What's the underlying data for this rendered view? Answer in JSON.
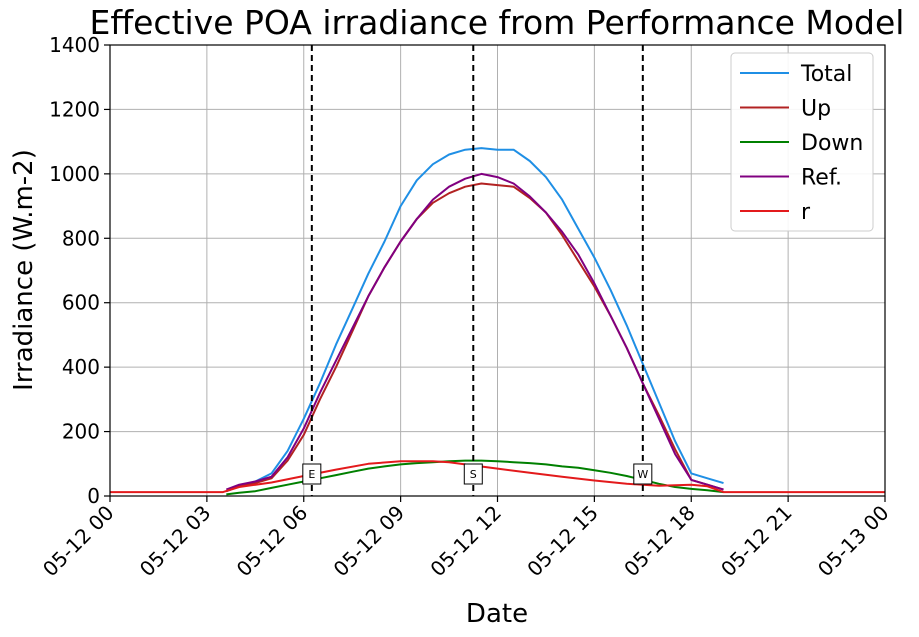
{
  "chart_data": {
    "type": "line",
    "title": "Effective POA irradiance from Performance Model",
    "xlabel": "Date",
    "ylabel": "Irradiance (W.m-2)",
    "x_unit": "hour of 2024-05-12 (0 = 05-12 00, 24 = 05-13 00)",
    "xlim": [
      0,
      24
    ],
    "ylim": [
      0,
      1400
    ],
    "grid": true,
    "legend_position": "top-right",
    "x_ticks": [
      {
        "value": 0,
        "label": "05-12 00"
      },
      {
        "value": 3,
        "label": "05-12 03"
      },
      {
        "value": 6,
        "label": "05-12 06"
      },
      {
        "value": 9,
        "label": "05-12 09"
      },
      {
        "value": 12,
        "label": "05-12 12"
      },
      {
        "value": 15,
        "label": "05-12 15"
      },
      {
        "value": 18,
        "label": "05-12 18"
      },
      {
        "value": 21,
        "label": "05-12 21"
      },
      {
        "value": 24,
        "label": "05-13 00"
      }
    ],
    "y_ticks": [
      0,
      200,
      400,
      600,
      800,
      1000,
      1200,
      1400
    ],
    "vlines": [
      {
        "x": 6.25,
        "label": "E"
      },
      {
        "x": 11.25,
        "label": "S"
      },
      {
        "x": 16.5,
        "label": "W"
      }
    ],
    "series": [
      {
        "name": "Total",
        "color": "#1f8fe5",
        "x": [
          3.6,
          4.0,
          4.5,
          5.0,
          5.5,
          6.0,
          6.5,
          7.0,
          7.5,
          8.0,
          8.5,
          9.0,
          9.5,
          10.0,
          10.5,
          11.0,
          11.5,
          12.0,
          12.5,
          13.0,
          13.5,
          14.0,
          14.5,
          15.0,
          15.5,
          16.0,
          16.5,
          17.0,
          17.5,
          18.0,
          18.5,
          19.0
        ],
        "y": [
          15,
          30,
          45,
          70,
          140,
          240,
          350,
          470,
          580,
          690,
          790,
          900,
          980,
          1030,
          1060,
          1075,
          1080,
          1075,
          1075,
          1040,
          990,
          920,
          830,
          740,
          640,
          530,
          410,
          290,
          170,
          70,
          55,
          40
        ]
      },
      {
        "name": "Up",
        "color": "#b22222",
        "x": [
          3.6,
          4.0,
          4.5,
          5.0,
          5.5,
          6.0,
          6.5,
          7.0,
          7.5,
          8.0,
          8.5,
          9.0,
          9.5,
          10.0,
          10.5,
          11.0,
          11.5,
          12.0,
          12.5,
          13.0,
          13.5,
          14.0,
          14.5,
          15.0,
          15.5,
          16.0,
          16.5,
          17.0,
          17.5,
          18.0,
          18.5,
          19.0
        ],
        "y": [
          15,
          30,
          40,
          55,
          110,
          190,
          300,
          400,
          510,
          620,
          710,
          790,
          860,
          910,
          940,
          960,
          970,
          965,
          960,
          925,
          880,
          810,
          730,
          650,
          560,
          460,
          350,
          250,
          145,
          50,
          35,
          20
        ]
      },
      {
        "name": "Down",
        "color": "#008000",
        "x": [
          3.6,
          4.0,
          4.5,
          5.0,
          5.5,
          6.0,
          6.5,
          7.0,
          7.5,
          8.0,
          8.5,
          9.0,
          9.5,
          10.0,
          10.5,
          11.0,
          11.5,
          12.0,
          12.5,
          13.0,
          13.5,
          14.0,
          14.5,
          15.0,
          15.5,
          16.0,
          16.5,
          17.0,
          17.5,
          18.0,
          18.5,
          19.0
        ],
        "y": [
          5,
          10,
          15,
          25,
          35,
          45,
          55,
          65,
          75,
          85,
          92,
          98,
          102,
          105,
          108,
          110,
          110,
          108,
          105,
          102,
          98,
          92,
          88,
          80,
          72,
          62,
          50,
          38,
          28,
          22,
          18,
          12
        ]
      },
      {
        "name": "Ref.",
        "color": "#800080",
        "x": [
          3.6,
          4.0,
          4.5,
          5.0,
          5.5,
          6.0,
          6.5,
          7.0,
          7.5,
          8.0,
          8.5,
          9.0,
          9.5,
          10.0,
          10.5,
          11.0,
          11.5,
          12.0,
          12.5,
          13.0,
          13.5,
          14.0,
          14.5,
          15.0,
          15.5,
          16.0,
          16.5,
          17.0,
          17.5,
          18.0,
          18.5,
          19.0
        ],
        "y": [
          20,
          35,
          45,
          60,
          120,
          210,
          320,
          420,
          520,
          620,
          710,
          790,
          860,
          920,
          960,
          985,
          1000,
          990,
          970,
          930,
          880,
          820,
          750,
          660,
          560,
          460,
          350,
          240,
          130,
          50,
          35,
          20
        ]
      },
      {
        "name": "r",
        "color": "#e31a1c",
        "x": [
          0,
          3.5,
          4.0,
          5.0,
          6.0,
          7.0,
          8.0,
          9.0,
          10.0,
          10.5,
          11.0,
          12.0,
          13.0,
          14.0,
          15.0,
          16.0,
          17.0,
          18.0,
          18.5,
          19.0,
          24.0
        ],
        "y": [
          12,
          12,
          28,
          42,
          62,
          82,
          100,
          108,
          108,
          105,
          98,
          85,
          72,
          60,
          48,
          38,
          32,
          35,
          30,
          12,
          12
        ]
      }
    ]
  }
}
